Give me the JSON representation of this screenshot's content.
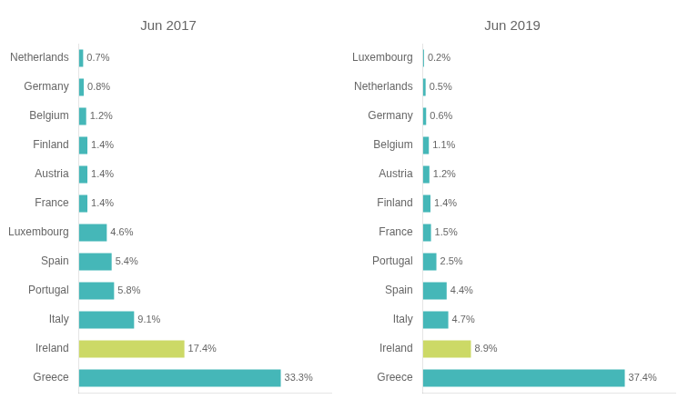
{
  "chart_data": [
    {
      "type": "bar",
      "orientation": "horizontal",
      "title": "Jun 2017",
      "categories": [
        "Netherlands",
        "Germany",
        "Belgium",
        "Finland",
        "Austria",
        "France",
        "Luxembourg",
        "Spain",
        "Portugal",
        "Italy",
        "Ireland",
        "Greece"
      ],
      "values": [
        0.7,
        0.8,
        1.2,
        1.4,
        1.4,
        1.4,
        4.6,
        5.4,
        5.8,
        9.1,
        17.4,
        33.3
      ],
      "value_labels": [
        "0.7%",
        "0.8%",
        "1.2%",
        "1.4%",
        "1.4%",
        "1.4%",
        "4.6%",
        "5.4%",
        "5.8%",
        "9.1%",
        "17.4%",
        "33.3%"
      ],
      "colors": [
        "#45b7b8",
        "#45b7b8",
        "#45b7b8",
        "#45b7b8",
        "#45b7b8",
        "#45b7b8",
        "#45b7b8",
        "#45b7b8",
        "#45b7b8",
        "#45b7b8",
        "#ccd966",
        "#45b7b8"
      ],
      "xlim": [
        0,
        41.625
      ],
      "grid": false,
      "data_labels": true,
      "tick_labels": "y"
    },
    {
      "type": "bar",
      "orientation": "horizontal",
      "title": "Jun 2019",
      "categories": [
        "Luxembourg",
        "Netherlands",
        "Germany",
        "Belgium",
        "Austria",
        "Finland",
        "France",
        "Portugal",
        "Spain",
        "Italy",
        "Ireland",
        "Greece"
      ],
      "values": [
        0.2,
        0.5,
        0.6,
        1.1,
        1.2,
        1.4,
        1.5,
        2.5,
        4.4,
        4.7,
        8.9,
        37.4
      ],
      "value_labels": [
        "0.2%",
        "0.5%",
        "0.6%",
        "1.1%",
        "1.2%",
        "1.4%",
        "1.5%",
        "2.5%",
        "4.4%",
        "4.7%",
        "8.9%",
        "37.4%"
      ],
      "colors": [
        "#45b7b8",
        "#45b7b8",
        "#45b7b8",
        "#45b7b8",
        "#45b7b8",
        "#45b7b8",
        "#45b7b8",
        "#45b7b8",
        "#45b7b8",
        "#45b7b8",
        "#ccd966",
        "#45b7b8"
      ],
      "xlim": [
        0,
        46.75
      ],
      "grid": false,
      "data_labels": true,
      "tick_labels": "y"
    }
  ]
}
